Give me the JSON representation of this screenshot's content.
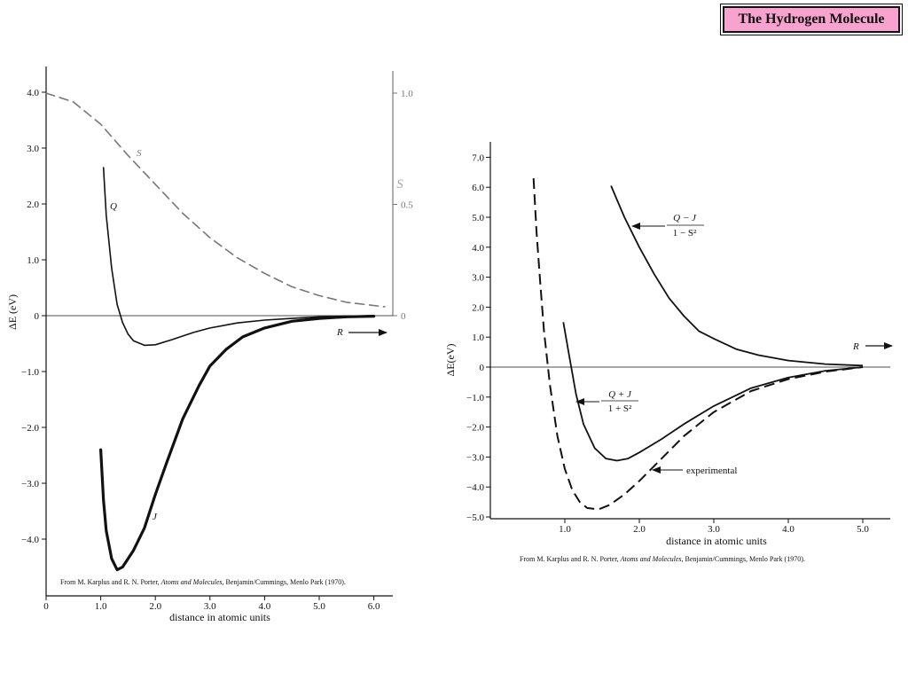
{
  "page_title": "The Hydrogen Molecule",
  "citation": {
    "prefix": "From M. Karplus and R. N. Porter, ",
    "book": "Atoms and Molecules",
    "suffix": ", Benjamin/Cummings, Menlo Park (1970)."
  },
  "chart_data": [
    {
      "type": "line",
      "title": "",
      "xlabel": "distance in atomic units",
      "ylabel": "ΔE (eV)",
      "y2label": "S",
      "xlim": [
        0,
        6.2
      ],
      "ylim": [
        -4.7,
        4.2
      ],
      "y2lim": [
        0,
        1.1
      ],
      "x_ticks": [
        "0",
        "1.0",
        "2.0",
        "3.0",
        "4.0",
        "5.0",
        "6.0"
      ],
      "y_ticks": [
        "4.0",
        "3.0",
        "2.0",
        "1.0",
        "0",
        "−1.0",
        "−2.0",
        "−3.0",
        "−4.0"
      ],
      "y2_ticks": [
        "1.0",
        "0.5",
        "0"
      ],
      "arrow_label": "R",
      "series": [
        {
          "name": "S",
          "axis": "right",
          "style": "dashed",
          "points": [
            [
              0.0,
              1.0
            ],
            [
              0.5,
              0.96
            ],
            [
              1.0,
              0.86
            ],
            [
              1.5,
              0.72
            ],
            [
              2.0,
              0.59
            ],
            [
              2.5,
              0.46
            ],
            [
              3.0,
              0.35
            ],
            [
              3.5,
              0.26
            ],
            [
              4.0,
              0.19
            ],
            [
              4.5,
              0.13
            ],
            [
              5.0,
              0.09
            ],
            [
              5.5,
              0.06
            ],
            [
              6.2,
              0.04
            ]
          ]
        },
        {
          "name": "Q",
          "axis": "left",
          "style": "solid",
          "points": [
            [
              1.05,
              2.65
            ],
            [
              1.1,
              1.8
            ],
            [
              1.2,
              0.85
            ],
            [
              1.3,
              0.2
            ],
            [
              1.4,
              -0.12
            ],
            [
              1.5,
              -0.33
            ],
            [
              1.6,
              -0.45
            ],
            [
              1.8,
              -0.53
            ],
            [
              2.0,
              -0.52
            ],
            [
              2.3,
              -0.43
            ],
            [
              2.7,
              -0.3
            ],
            [
              3.0,
              -0.22
            ],
            [
              3.5,
              -0.13
            ],
            [
              4.0,
              -0.08
            ],
            [
              4.5,
              -0.05
            ],
            [
              5.0,
              -0.02
            ],
            [
              5.5,
              -0.01
            ],
            [
              6.0,
              0.0
            ]
          ]
        },
        {
          "name": "J",
          "axis": "left",
          "style": "bold",
          "points": [
            [
              1.0,
              -2.4
            ],
            [
              1.05,
              -3.3
            ],
            [
              1.1,
              -3.85
            ],
            [
              1.2,
              -4.35
            ],
            [
              1.3,
              -4.55
            ],
            [
              1.4,
              -4.5
            ],
            [
              1.6,
              -4.2
            ],
            [
              1.8,
              -3.8
            ],
            [
              2.0,
              -3.2
            ],
            [
              2.2,
              -2.65
            ],
            [
              2.5,
              -1.85
            ],
            [
              2.8,
              -1.25
            ],
            [
              3.0,
              -0.9
            ],
            [
              3.3,
              -0.6
            ],
            [
              3.6,
              -0.38
            ],
            [
              4.0,
              -0.22
            ],
            [
              4.5,
              -0.1
            ],
            [
              5.0,
              -0.05
            ],
            [
              5.5,
              -0.02
            ],
            [
              6.0,
              -0.01
            ]
          ]
        }
      ]
    },
    {
      "type": "line",
      "title": "",
      "xlabel": "distance in atomic units",
      "ylabel": "ΔE(eV)",
      "xlim": [
        0,
        5.3
      ],
      "ylim": [
        -5.0,
        7.5
      ],
      "x_ticks": [
        "1.0",
        "2.0",
        "3.0",
        "4.0",
        "5.0"
      ],
      "y_ticks": [
        "7.0",
        "6.0",
        "5.0",
        "4.0",
        "3.0",
        "2.0",
        "1.0",
        "0",
        "−1.0",
        "−2.0",
        "−3.0",
        "−4.0",
        "−5.0"
      ],
      "arrow_label": "R",
      "series": [
        {
          "name": "experimental",
          "style": "dashed",
          "points": [
            [
              0.58,
              6.3
            ],
            [
              0.62,
              4.5
            ],
            [
              0.67,
              2.8
            ],
            [
              0.72,
              1.2
            ],
            [
              0.8,
              -0.6
            ],
            [
              0.9,
              -2.3
            ],
            [
              1.0,
              -3.4
            ],
            [
              1.1,
              -4.1
            ],
            [
              1.2,
              -4.5
            ],
            [
              1.3,
              -4.7
            ],
            [
              1.45,
              -4.75
            ],
            [
              1.6,
              -4.6
            ],
            [
              1.8,
              -4.25
            ],
            [
              2.0,
              -3.8
            ],
            [
              2.3,
              -3.05
            ],
            [
              2.6,
              -2.3
            ],
            [
              3.0,
              -1.5
            ],
            [
              3.5,
              -0.8
            ],
            [
              4.0,
              -0.4
            ],
            [
              4.5,
              -0.15
            ],
            [
              5.0,
              0.0
            ]
          ]
        },
        {
          "name": "(Q + J)/(1 + S²)",
          "style": "solid",
          "points": [
            [
              0.98,
              1.5
            ],
            [
              1.05,
              0.5
            ],
            [
              1.15,
              -0.9
            ],
            [
              1.25,
              -1.9
            ],
            [
              1.4,
              -2.7
            ],
            [
              1.55,
              -3.05
            ],
            [
              1.7,
              -3.12
            ],
            [
              1.85,
              -3.05
            ],
            [
              2.0,
              -2.85
            ],
            [
              2.3,
              -2.4
            ],
            [
              2.6,
              -1.9
            ],
            [
              3.0,
              -1.3
            ],
            [
              3.5,
              -0.7
            ],
            [
              4.0,
              -0.35
            ],
            [
              4.5,
              -0.12
            ],
            [
              5.0,
              0.0
            ]
          ]
        },
        {
          "name": "(Q − J)/(1 − S²)",
          "style": "solid",
          "points": [
            [
              1.62,
              6.05
            ],
            [
              1.8,
              5.0
            ],
            [
              2.0,
              4.0
            ],
            [
              2.2,
              3.1
            ],
            [
              2.4,
              2.3
            ],
            [
              2.6,
              1.7
            ],
            [
              2.8,
              1.2
            ],
            [
              3.0,
              0.95
            ],
            [
              3.3,
              0.6
            ],
            [
              3.6,
              0.4
            ],
            [
              4.0,
              0.22
            ],
            [
              4.5,
              0.1
            ],
            [
              5.0,
              0.05
            ]
          ]
        }
      ],
      "annotations": {
        "minus_num": "Q − J",
        "minus_den": "1 − S²",
        "plus_num": "Q + J",
        "plus_den": "1 + S²",
        "experimental": "experimental"
      }
    }
  ]
}
